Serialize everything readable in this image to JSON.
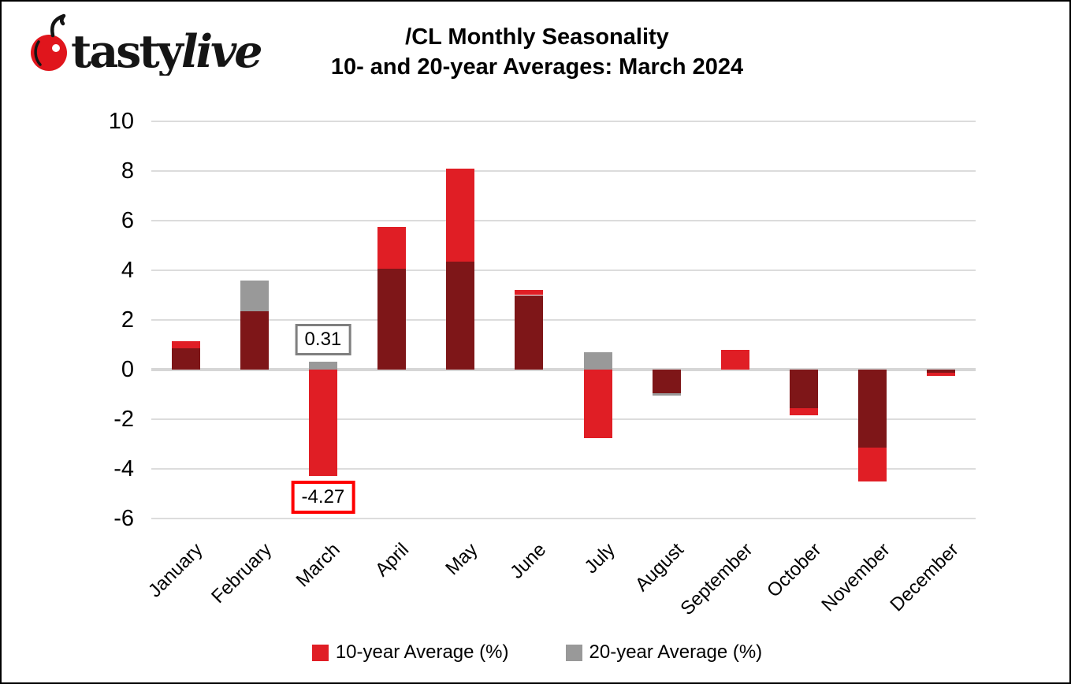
{
  "logo": {
    "brand_first": "tasty",
    "brand_second": "live",
    "cherry_color": "#E0151C",
    "text_color": "#151515"
  },
  "title": {
    "line1": "/CL Monthly Seasonality",
    "line2": "10- and 20-year Averages: March 2024"
  },
  "chart_data": {
    "type": "bar",
    "mode": "overlapped",
    "categories": [
      "January",
      "February",
      "March",
      "April",
      "May",
      "June",
      "July",
      "August",
      "September",
      "October",
      "November",
      "December"
    ],
    "series": [
      {
        "name": "10-year Average (%)",
        "color": "#E01E25",
        "values": [
          1.15,
          2.35,
          -4.27,
          5.75,
          8.1,
          3.2,
          -2.75,
          -0.95,
          0.8,
          -1.85,
          -4.5,
          -0.25
        ]
      },
      {
        "name": "20-year Average (%)",
        "color": "#999999",
        "values": [
          0.85,
          3.6,
          0.31,
          4.05,
          4.35,
          3.0,
          0.7,
          -1.05,
          0.0,
          -1.55,
          -3.15,
          -0.12
        ]
      }
    ],
    "overlap_color": "#7E1618",
    "ylim": [
      -6,
      10
    ],
    "yticks": [
      10,
      8,
      6,
      4,
      2,
      0,
      -2,
      -4,
      -6
    ],
    "grid": true,
    "gridline_color": "#DCDCDC",
    "zero_line_color": "#D6D6D6",
    "annotations": [
      {
        "month": "March",
        "series_index": 1,
        "text": "0.31",
        "border_color": "#7F7F7F"
      },
      {
        "month": "March",
        "series_index": 0,
        "text": "-4.27",
        "border_color": "#FE0000"
      }
    ],
    "legend_position": "bottom"
  },
  "legend": {
    "items": [
      {
        "label": "10-year Average (%)",
        "color": "#E01E25"
      },
      {
        "label": "20-year Average (%)",
        "color": "#999999"
      }
    ]
  }
}
